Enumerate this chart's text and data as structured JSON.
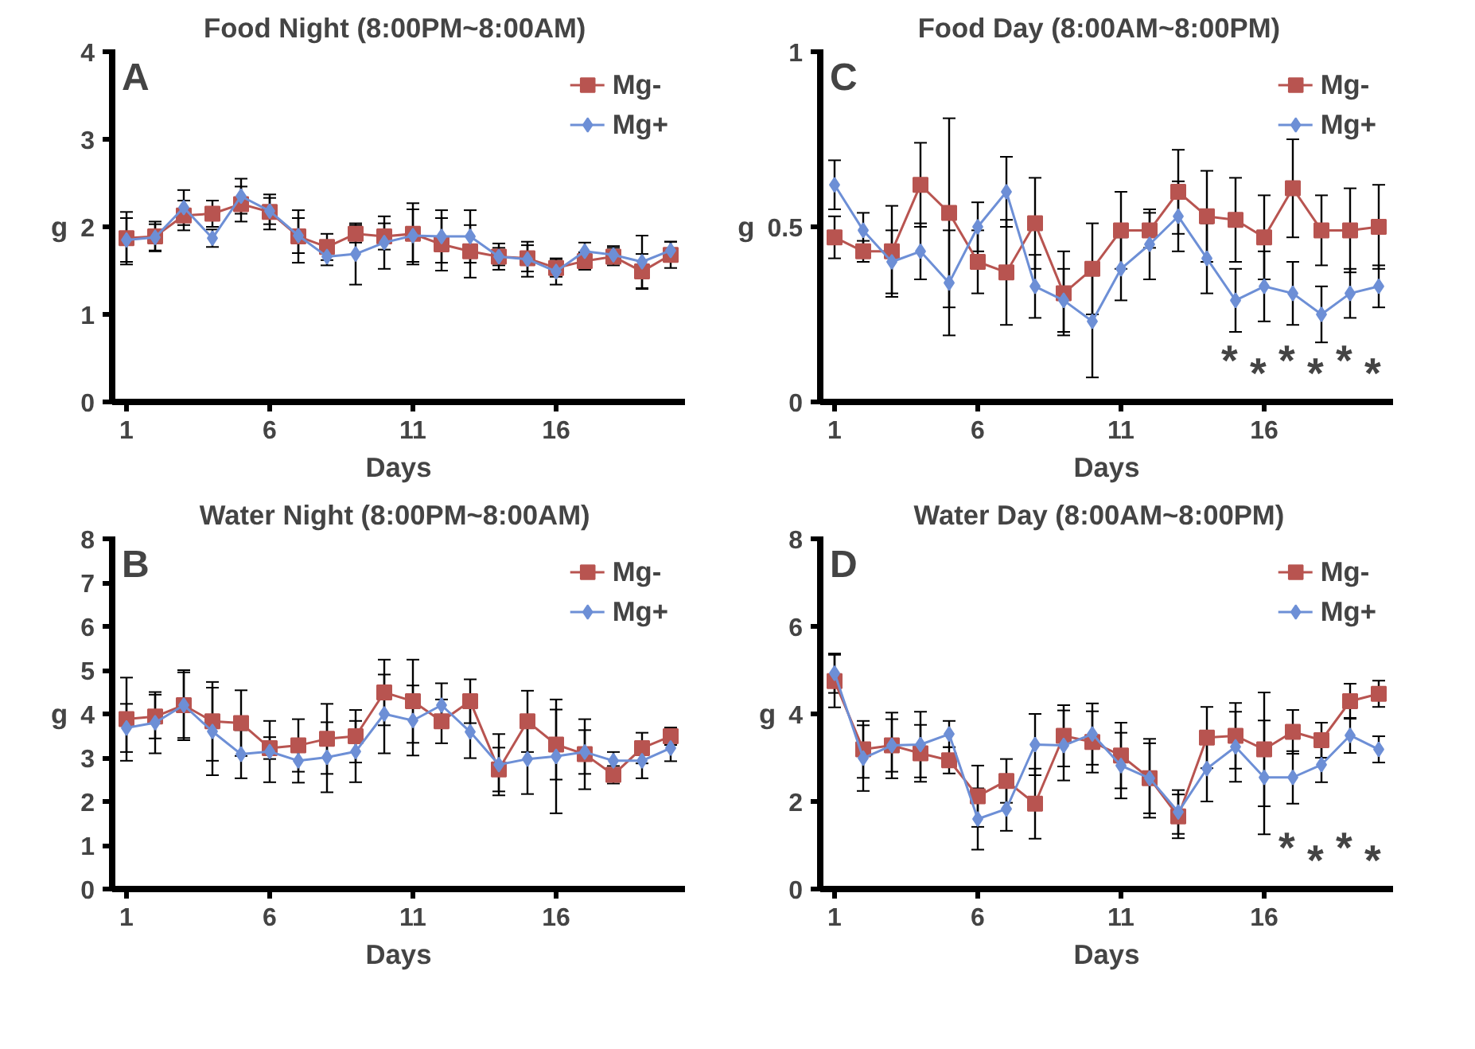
{
  "chart_data": [
    {
      "type": "line",
      "title": "Food  Night (8:00PM~8:00AM)",
      "xlabel": "Days",
      "ylabel": "g",
      "x": [
        1,
        2,
        3,
        4,
        5,
        6,
        7,
        8,
        9,
        10,
        11,
        12,
        13,
        14,
        15,
        16,
        17,
        18,
        19,
        20
      ],
      "xlim": [
        0.5,
        20.5
      ],
      "xticks": [
        1,
        6,
        11,
        16
      ],
      "ylim": [
        0,
        4
      ],
      "yticks": [
        0,
        1,
        2,
        3,
        4
      ],
      "grid": false,
      "legend": "top right",
      "annotations": [
        "A"
      ],
      "series": [
        {
          "name": "Mg-",
          "color": "#b85450",
          "marker": "square",
          "values": [
            1.87,
            1.89,
            2.13,
            2.15,
            2.26,
            2.17,
            1.89,
            1.77,
            1.92,
            1.89,
            1.92,
            1.8,
            1.72,
            1.66,
            1.64,
            1.53,
            1.61,
            1.66,
            1.49,
            1.68
          ],
          "errors": [
            0.3,
            0.17,
            0.17,
            0.15,
            0.2,
            0.2,
            0.3,
            0.15,
            0.1,
            0.15,
            0.35,
            0.3,
            0.3,
            0.15,
            0.15,
            0.1,
            0.1,
            0.1,
            0.2,
            0.15
          ]
        },
        {
          "name": "Mg+",
          "color": "#6d8fd6",
          "marker": "diamond",
          "values": [
            1.85,
            1.88,
            2.22,
            1.87,
            2.35,
            2.18,
            1.9,
            1.66,
            1.69,
            1.82,
            1.9,
            1.89,
            1.89,
            1.66,
            1.63,
            1.49,
            1.72,
            1.68,
            1.6,
            1.73
          ],
          "errors": [
            0.25,
            0.15,
            0.2,
            0.1,
            0.2,
            0.15,
            0.2,
            0.1,
            0.35,
            0.3,
            0.3,
            0.3,
            0.3,
            0.1,
            0.2,
            0.15,
            0.1,
            0.1,
            0.3,
            0.1
          ]
        }
      ]
    },
    {
      "type": "line",
      "title": "Food   Day (8:00AM~8:00PM)",
      "xlabel": "Days",
      "ylabel": "g",
      "x": [
        1,
        2,
        3,
        4,
        5,
        6,
        7,
        8,
        9,
        10,
        11,
        12,
        13,
        14,
        15,
        16,
        17,
        18,
        19,
        20
      ],
      "xlim": [
        0.5,
        20.5
      ],
      "xticks": [
        1,
        6,
        11,
        16
      ],
      "ylim": [
        0,
        1
      ],
      "yticks": [
        0,
        0.5,
        1
      ],
      "grid": false,
      "legend": "top right",
      "annotations": [
        "C",
        "*",
        "*",
        "*",
        "*",
        "*",
        "*"
      ],
      "series": [
        {
          "name": "Mg-",
          "color": "#b85450",
          "marker": "square",
          "values": [
            0.47,
            0.43,
            0.43,
            0.62,
            0.54,
            0.4,
            0.37,
            0.51,
            0.31,
            0.38,
            0.49,
            0.49,
            0.6,
            0.53,
            0.52,
            0.47,
            0.61,
            0.49,
            0.49,
            0.5
          ],
          "errors": [
            0.06,
            0.03,
            0.13,
            0.12,
            0.27,
            0.09,
            0.15,
            0.13,
            0.12,
            0.13,
            0.11,
            0.05,
            0.12,
            0.13,
            0.12,
            0.12,
            0.14,
            0.1,
            0.12,
            0.12
          ]
        },
        {
          "name": "Mg+",
          "color": "#6d8fd6",
          "marker": "diamond",
          "values": [
            0.62,
            0.49,
            0.4,
            0.43,
            0.34,
            0.5,
            0.6,
            0.33,
            0.29,
            0.23,
            0.38,
            0.45,
            0.53,
            0.41,
            0.29,
            0.33,
            0.31,
            0.25,
            0.31,
            0.33
          ],
          "errors": [
            0.07,
            0.05,
            0.09,
            0.08,
            0.15,
            0.07,
            0.1,
            0.09,
            0.09,
            0.16,
            0.09,
            0.1,
            0.1,
            0.1,
            0.09,
            0.1,
            0.09,
            0.08,
            0.07,
            0.06
          ]
        }
      ]
    },
    {
      "type": "line",
      "title": "Water  Night (8:00PM~8:00AM)",
      "xlabel": "Days",
      "ylabel": "g",
      "x": [
        1,
        2,
        3,
        4,
        5,
        6,
        7,
        8,
        9,
        10,
        11,
        12,
        13,
        14,
        15,
        16,
        17,
        18,
        19,
        20
      ],
      "xlim": [
        0.5,
        20.5
      ],
      "xticks": [
        1,
        6,
        11,
        16
      ],
      "ylim": [
        0,
        8
      ],
      "yticks": [
        0,
        1,
        2,
        3,
        4,
        5,
        6,
        7,
        8
      ],
      "grid": false,
      "legend": "top right",
      "annotations": [
        "B"
      ],
      "series": [
        {
          "name": "Mg-",
          "color": "#b85450",
          "marker": "square",
          "values": [
            3.88,
            3.94,
            4.2,
            3.83,
            3.79,
            3.22,
            3.28,
            3.43,
            3.49,
            4.49,
            4.29,
            3.83,
            4.29,
            2.73,
            3.83,
            3.3,
            3.08,
            2.61,
            3.22,
            3.49
          ],
          "errors": [
            0.95,
            0.5,
            0.75,
            0.9,
            0.75,
            0.25,
            0.6,
            0.8,
            0.6,
            0.75,
            0.95,
            0.5,
            0.5,
            0.5,
            0.7,
            0.8,
            0.8,
            0.2,
            0.35,
            0.2
          ]
        },
        {
          "name": "Mg+",
          "color": "#6d8fd6",
          "marker": "diamond",
          "values": [
            3.68,
            3.8,
            4.2,
            3.6,
            3.08,
            3.14,
            2.93,
            3.01,
            3.14,
            4.0,
            3.85,
            4.2,
            3.59,
            2.84,
            2.97,
            3.03,
            3.13,
            2.93,
            2.93,
            3.22
          ],
          "errors": [
            0.55,
            0.7,
            0.8,
            1.0,
            0.55,
            0.7,
            0.5,
            0.8,
            0.7,
            0.9,
            0.8,
            0.5,
            0.6,
            0.7,
            0.8,
            1.3,
            0.5,
            0.2,
            0.4,
            0.3
          ]
        }
      ]
    },
    {
      "type": "line",
      "title": "Water   Day (8:00AM~8:00PM)",
      "xlabel": "Days",
      "ylabel": "g",
      "x": [
        1,
        2,
        3,
        4,
        5,
        6,
        7,
        8,
        9,
        10,
        11,
        12,
        13,
        14,
        15,
        16,
        17,
        18,
        19,
        20
      ],
      "xlim": [
        0.5,
        20.5
      ],
      "xticks": [
        1,
        6,
        11,
        16
      ],
      "ylim": [
        0,
        8
      ],
      "yticks": [
        0,
        2,
        4,
        6,
        8
      ],
      "grid": false,
      "legend": "top right",
      "annotations": [
        "D",
        "*",
        "*",
        "*",
        "*"
      ],
      "series": [
        {
          "name": "Mg-",
          "color": "#b85450",
          "marker": "square",
          "values": [
            4.75,
            3.19,
            3.28,
            3.1,
            2.94,
            2.12,
            2.47,
            1.95,
            3.5,
            3.36,
            3.05,
            2.53,
            1.66,
            3.46,
            3.5,
            3.19,
            3.59,
            3.4,
            4.29,
            4.46
          ],
          "errors": [
            0.6,
            0.65,
            0.75,
            0.65,
            0.3,
            0.7,
            0.5,
            0.8,
            0.7,
            0.7,
            0.75,
            0.9,
            0.5,
            0.7,
            0.75,
            1.3,
            0.5,
            0.4,
            0.4,
            0.3
          ]
        },
        {
          "name": "Mg+",
          "color": "#6d8fd6",
          "marker": "diamond",
          "values": [
            4.93,
            2.99,
            3.28,
            3.3,
            3.54,
            1.6,
            1.83,
            3.3,
            3.28,
            3.54,
            2.82,
            2.53,
            1.76,
            2.75,
            3.25,
            2.55,
            2.55,
            2.84,
            3.51,
            3.19
          ],
          "errors": [
            0.45,
            0.75,
            0.6,
            0.75,
            0.3,
            0.7,
            0.5,
            0.7,
            0.8,
            0.7,
            0.75,
            0.8,
            0.5,
            0.75,
            0.8,
            1.3,
            0.6,
            0.4,
            0.4,
            0.3
          ]
        }
      ]
    }
  ]
}
